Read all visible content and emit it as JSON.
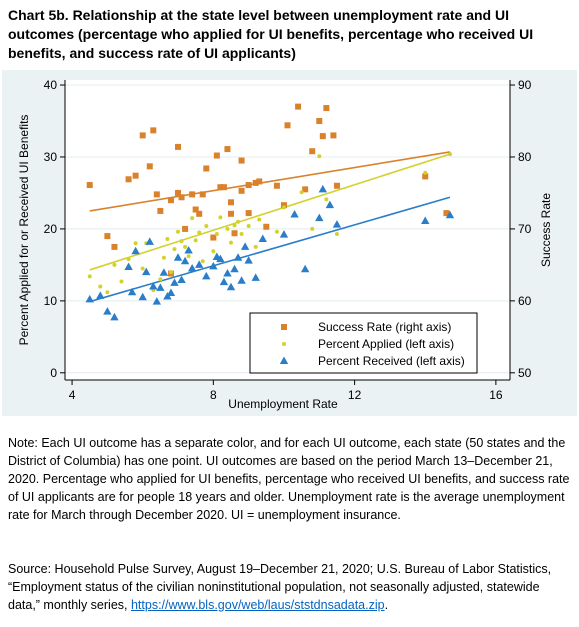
{
  "title": "Chart 5b. Relationship at the state level between unemployment rate and UI outcomes (percentage who applied for UI benefits, percentage who received UI benefits, and success rate of UI applicants)",
  "note": "Note: Each UI outcome has a separate color, and for each UI outcome, each state (50 states and the District of Columbia) has one point. UI outcomes are based on the period March 13–December 21, 2020. Percentage who applied for UI benefits, percentage who received UI benefits, and success rate of UI applicants are for people 18 years and older. Unemployment rate is the average unemployment rate for March through December 2020. UI = unemployment insurance.",
  "source_text": "Source: Household Pulse Survey, August 19–December 21, 2020; U.S. Bureau of Labor Statistics, “Employment status of the civilian noninstitutional population, not seasonally adjusted, statewide data,” monthly series, ",
  "source_link": "https://www.bls.gov/web/laus/ststdnsadata.zip",
  "source_end": ".",
  "chart_data": {
    "type": "scatter",
    "xlabel": "Unemployment Rate",
    "ylabel_left": "Percent Applied for or Received UI Benefits",
    "ylabel_right": "Success Rate",
    "xlim": [
      3.8,
      16.4
    ],
    "ylim_left": [
      -1,
      40.7
    ],
    "ylim_right": [
      49,
      90.7
    ],
    "xticks": [
      4,
      8,
      12,
      16
    ],
    "yticks_left": [
      0,
      10,
      20,
      30,
      40
    ],
    "yticks_right": [
      50,
      60,
      70,
      80,
      90
    ],
    "legend_position": "bottom-right",
    "grid": true,
    "colors": {
      "success": "#d9822b",
      "applied": "#d2d22a",
      "received": "#2a7ec9",
      "background": "#eaf2f3"
    },
    "series": [
      {
        "name": "Success Rate (right axis)",
        "axis": "right",
        "marker": "square",
        "points": [
          [
            4.5,
            76.1
          ],
          [
            5.0,
            69.0
          ],
          [
            5.2,
            67.5
          ],
          [
            5.6,
            76.9
          ],
          [
            5.8,
            77.4
          ],
          [
            6.0,
            83.0
          ],
          [
            6.2,
            78.7
          ],
          [
            6.3,
            83.7
          ],
          [
            6.4,
            74.8
          ],
          [
            6.5,
            72.5
          ],
          [
            6.8,
            74.0
          ],
          [
            6.8,
            63.8
          ],
          [
            7.0,
            81.4
          ],
          [
            7.0,
            75.0
          ],
          [
            7.1,
            74.4
          ],
          [
            7.2,
            70.0
          ],
          [
            7.4,
            74.8
          ],
          [
            7.5,
            72.7
          ],
          [
            7.6,
            72.1
          ],
          [
            7.7,
            74.8
          ],
          [
            7.8,
            78.4
          ],
          [
            8.0,
            68.8
          ],
          [
            8.1,
            80.2
          ],
          [
            8.2,
            75.8
          ],
          [
            8.3,
            75.8
          ],
          [
            8.4,
            81.1
          ],
          [
            8.5,
            73.7
          ],
          [
            8.5,
            72.1
          ],
          [
            8.6,
            69.4
          ],
          [
            8.8,
            75.3
          ],
          [
            8.8,
            79.5
          ],
          [
            9.0,
            72.2
          ],
          [
            9.0,
            76.1
          ],
          [
            9.2,
            76.4
          ],
          [
            9.3,
            76.6
          ],
          [
            9.5,
            70.3
          ],
          [
            9.8,
            76.0
          ],
          [
            10.0,
            73.3
          ],
          [
            10.1,
            84.4
          ],
          [
            10.4,
            87.0
          ],
          [
            10.6,
            75.5
          ],
          [
            10.8,
            80.8
          ],
          [
            11.0,
            85.0
          ],
          [
            11.1,
            82.9
          ],
          [
            11.2,
            86.8
          ],
          [
            11.4,
            83.0
          ],
          [
            11.5,
            76.0
          ],
          [
            14.0,
            77.3
          ],
          [
            14.6,
            72.2
          ]
        ]
      },
      {
        "name": "Percent Applied (left axis)",
        "axis": "left",
        "marker": "dot",
        "points": [
          [
            4.5,
            13.4
          ],
          [
            4.8,
            12.0
          ],
          [
            5.0,
            11.2
          ],
          [
            5.2,
            15.0
          ],
          [
            5.4,
            12.7
          ],
          [
            5.6,
            15.8
          ],
          [
            5.8,
            18.0
          ],
          [
            6.0,
            14.5
          ],
          [
            6.1,
            18.0
          ],
          [
            6.3,
            11.5
          ],
          [
            6.5,
            13.0
          ],
          [
            6.6,
            16.0
          ],
          [
            6.7,
            18.6
          ],
          [
            6.8,
            14.0
          ],
          [
            6.9,
            17.2
          ],
          [
            7.0,
            19.6
          ],
          [
            7.1,
            18.3
          ],
          [
            7.2,
            17.5
          ],
          [
            7.3,
            16.2
          ],
          [
            7.4,
            21.5
          ],
          [
            7.5,
            18.4
          ],
          [
            7.6,
            19.5
          ],
          [
            7.7,
            15.5
          ],
          [
            7.8,
            20.4
          ],
          [
            8.0,
            16.9
          ],
          [
            8.1,
            19.3
          ],
          [
            8.2,
            21.6
          ],
          [
            8.4,
            20.0
          ],
          [
            8.5,
            18.1
          ],
          [
            8.6,
            20.5
          ],
          [
            8.7,
            21.0
          ],
          [
            8.8,
            19.3
          ],
          [
            9.0,
            20.4
          ],
          [
            9.2,
            17.5
          ],
          [
            9.3,
            21.3
          ],
          [
            9.8,
            19.6
          ],
          [
            10.0,
            23.0
          ],
          [
            10.5,
            25.1
          ],
          [
            10.8,
            20.0
          ],
          [
            11.0,
            30.1
          ],
          [
            11.2,
            24.1
          ],
          [
            11.5,
            19.3
          ],
          [
            14.0,
            27.8
          ],
          [
            14.7,
            30.4
          ]
        ]
      },
      {
        "name": "Percent Received (left axis)",
        "axis": "left",
        "marker": "triangle",
        "points": [
          [
            4.5,
            10.2
          ],
          [
            4.8,
            10.7
          ],
          [
            5.0,
            8.5
          ],
          [
            5.2,
            7.7
          ],
          [
            5.6,
            14.7
          ],
          [
            5.7,
            11.2
          ],
          [
            5.8,
            16.9
          ],
          [
            6.0,
            10.5
          ],
          [
            6.1,
            14.0
          ],
          [
            6.2,
            18.2
          ],
          [
            6.3,
            12.0
          ],
          [
            6.4,
            9.9
          ],
          [
            6.5,
            11.8
          ],
          [
            6.6,
            13.9
          ],
          [
            6.7,
            10.6
          ],
          [
            6.8,
            11.1
          ],
          [
            6.9,
            12.5
          ],
          [
            7.0,
            16.0
          ],
          [
            7.1,
            12.9
          ],
          [
            7.2,
            15.5
          ],
          [
            7.3,
            17.0
          ],
          [
            7.4,
            14.5
          ],
          [
            7.6,
            15.0
          ],
          [
            7.8,
            13.4
          ],
          [
            8.0,
            14.8
          ],
          [
            8.1,
            16.1
          ],
          [
            8.2,
            15.8
          ],
          [
            8.3,
            12.6
          ],
          [
            8.4,
            13.8
          ],
          [
            8.5,
            11.9
          ],
          [
            8.6,
            14.4
          ],
          [
            8.7,
            16.0
          ],
          [
            8.8,
            12.8
          ],
          [
            8.9,
            17.5
          ],
          [
            9.0,
            15.6
          ],
          [
            9.2,
            13.2
          ],
          [
            9.4,
            18.6
          ],
          [
            10.0,
            19.2
          ],
          [
            10.3,
            22.0
          ],
          [
            10.6,
            14.4
          ],
          [
            11.0,
            21.5
          ],
          [
            11.1,
            25.5
          ],
          [
            11.3,
            23.3
          ],
          [
            11.5,
            20.6
          ],
          [
            14.0,
            21.1
          ],
          [
            14.7,
            21.9
          ]
        ]
      }
    ],
    "fit_lines": [
      {
        "series": "Success Rate (right axis)",
        "axis": "right",
        "from": [
          4.5,
          72.5
        ],
        "to": [
          14.7,
          80.7
        ]
      },
      {
        "series": "Percent Applied (left axis)",
        "axis": "left",
        "from": [
          4.5,
          14.3
        ],
        "to": [
          14.7,
          30.4
        ]
      },
      {
        "series": "Percent Received (left axis)",
        "axis": "left",
        "from": [
          4.5,
          9.9
        ],
        "to": [
          14.7,
          24.4
        ]
      }
    ]
  }
}
